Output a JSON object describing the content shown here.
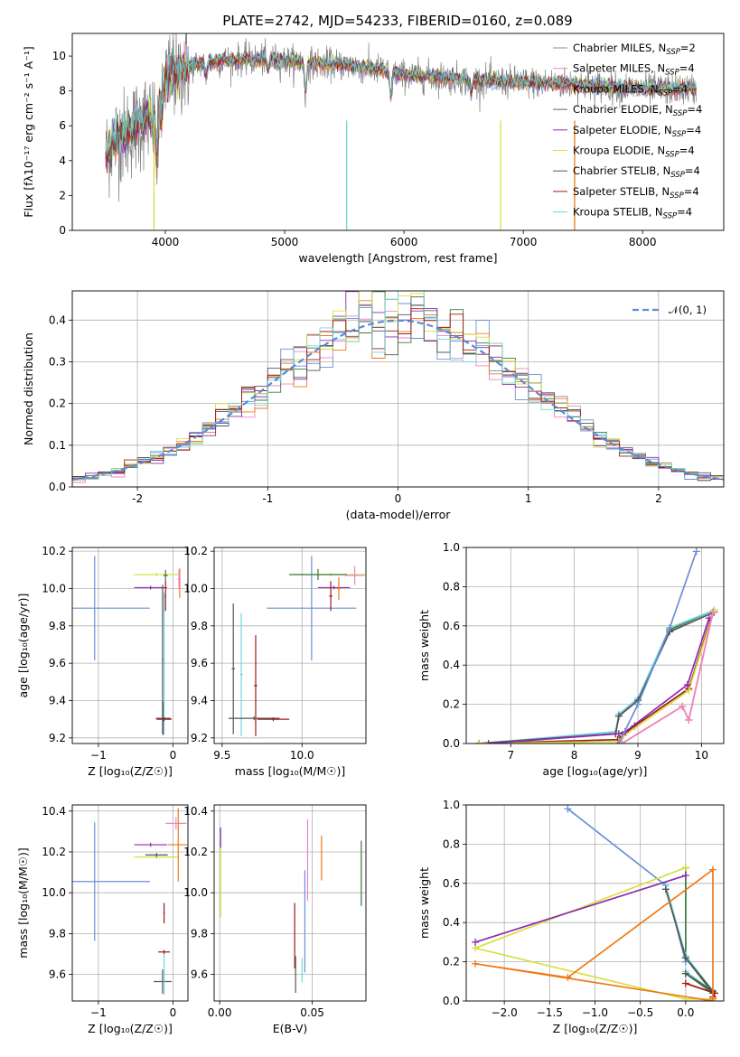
{
  "figure": {
    "title": "PLATE=2742, MJD=54233, FIBERID=0160, z=0.089"
  },
  "colors": {
    "chabrier_miles": "#6a8fd6",
    "salpeter_miles": "#ee82c8",
    "kroupa_miles": "#ee7a1a",
    "chabrier_elodie": "#3a7a3a",
    "salpeter_elodie": "#8a2bb0",
    "kroupa_elodie": "#d6e040",
    "chabrier_stelib": "#555555",
    "salpeter_stelib": "#a01818",
    "kroupa_stelib": "#6fd6dc",
    "spectrum": "#808080",
    "normal": "#5b8ad6",
    "grid": "#b0b0b0"
  },
  "chart_data": [
    {
      "id": "spectrum",
      "type": "line",
      "title": "PLATE=2742, MJD=54233, FIBERID=0160, z=0.089",
      "xlabel": "wavelength [Angstrom, rest frame]",
      "ylabel": "Flux [fλ10⁻¹⁷ erg cm⁻² s⁻¹ A⁻¹]",
      "xlim": [
        3220,
        8680
      ],
      "ylim": [
        0,
        11.3
      ],
      "xticks": [
        4000,
        5000,
        6000,
        7000,
        8000
      ],
      "yticks": [
        0,
        2,
        4,
        6,
        8,
        10
      ],
      "grid": false,
      "legend_position": "right",
      "legend": [
        {
          "label": "Chabrier MILES, N",
          "sub": "SSP",
          "eq": "=2",
          "key": "chabrier_miles"
        },
        {
          "label": "Salpeter MILES, N",
          "sub": "SSP",
          "eq": "=4",
          "key": "salpeter_miles"
        },
        {
          "label": "Kroupa MILES, N",
          "sub": "SSP",
          "eq": "=4",
          "key": "kroupa_miles"
        },
        {
          "label": "Chabrier ELODIE, N",
          "sub": "SSP",
          "eq": "=4",
          "key": "chabrier_elodie"
        },
        {
          "label": "Salpeter ELODIE, N",
          "sub": "SSP",
          "eq": "=4",
          "key": "salpeter_elodie"
        },
        {
          "label": "Kroupa ELODIE, N",
          "sub": "SSP",
          "eq": "=4",
          "key": "kroupa_elodie"
        },
        {
          "label": "Chabrier STELIB, N",
          "sub": "SSP",
          "eq": "=4",
          "key": "chabrier_stelib"
        },
        {
          "label": "Salpeter STELIB, N",
          "sub": "SSP",
          "eq": "=4",
          "key": "salpeter_stelib"
        },
        {
          "label": "Kroupa STELIB, N",
          "sub": "SSP",
          "eq": "=4",
          "key": "kroupa_stelib"
        }
      ],
      "data_range": [
        3500,
        8450
      ],
      "continuum": [
        [
          3500,
          4.3
        ],
        [
          3560,
          5.2
        ],
        [
          3650,
          5.4
        ],
        [
          3760,
          6.0
        ],
        [
          3850,
          6.5
        ],
        [
          3920,
          6.0
        ],
        [
          3950,
          8.4
        ],
        [
          4100,
          9.2
        ],
        [
          4300,
          9.6
        ],
        [
          4600,
          9.8
        ],
        [
          4900,
          9.8
        ],
        [
          5200,
          9.6
        ],
        [
          5500,
          9.5
        ],
        [
          5800,
          9.2
        ],
        [
          6000,
          8.9
        ],
        [
          6300,
          8.8
        ],
        [
          6600,
          8.6
        ],
        [
          7000,
          8.5
        ],
        [
          7400,
          8.4
        ],
        [
          7800,
          8.2
        ],
        [
          8100,
          8.1
        ],
        [
          8450,
          8.1
        ]
      ],
      "dips": [
        [
          3933,
          3.0
        ],
        [
          3968,
          2.4
        ],
        [
          4101,
          0.8
        ],
        [
          4340,
          0.8
        ],
        [
          4861,
          0.6
        ],
        [
          5175,
          1.8
        ],
        [
          5890,
          1.5
        ],
        [
          6563,
          0.8
        ]
      ],
      "sky_lines": [
        {
          "x": 3905,
          "key": "kroupa_elodie"
        },
        {
          "x": 5520,
          "key": "kroupa_stelib"
        },
        {
          "x": 6810,
          "key": "kroupa_elodie"
        },
        {
          "x": 7430,
          "key": "kroupa_miles"
        }
      ]
    },
    {
      "id": "residuals",
      "type": "histogram",
      "xlabel": "(data-model)/error",
      "ylabel": "Normed distribution",
      "xlim": [
        -2.5,
        2.5
      ],
      "ylim": [
        0,
        0.47
      ],
      "xticks": [
        -2,
        -1,
        0,
        1,
        2
      ],
      "yticks": [
        0.0,
        0.1,
        0.2,
        0.3,
        0.4
      ],
      "ytick_labels": [
        "0.0",
        "0.1",
        "0.2",
        "0.3",
        "0.4"
      ],
      "grid": true,
      "legend_position": "top-right",
      "legend": [
        {
          "label": "𝒩(0, 1)",
          "key": "normal"
        }
      ],
      "bin_width": 0.1,
      "n_series": 9
    },
    {
      "id": "age_vs_z",
      "type": "errorbar",
      "xlabel": "Z [log₁₀(Z/Z☉)]",
      "ylabel": "age  [log₁₀(age/yr)]",
      "xlim": [
        -1.35,
        0.2
      ],
      "ylim": [
        9.17,
        10.22
      ],
      "xticks": [
        -1,
        0
      ],
      "xtick_labels": [
        "−1",
        "0"
      ],
      "yticks": [
        9.2,
        9.4,
        9.6,
        9.8,
        10.0,
        10.2
      ],
      "ytick_labels": [
        "9.2",
        "9.4",
        "9.6",
        "9.8",
        "10.0",
        "10.2"
      ],
      "grid": true,
      "points": [
        {
          "key": "chabrier_miles",
          "x": -1.05,
          "xerr": 0.74,
          "y": 9.895,
          "yerr": 0.28
        },
        {
          "key": "kroupa_elodie",
          "x": -0.22,
          "xerr": 0.3,
          "y": 10.075,
          "yerr": 0.01
        },
        {
          "key": "salpeter_elodie",
          "x": -0.3,
          "xerr": 0.22,
          "y": 10.005,
          "yerr": 0.01
        },
        {
          "key": "chabrier_elodie",
          "x": -0.1,
          "xerr": 0.03,
          "y": 10.07,
          "yerr": 0.03
        },
        {
          "key": "kroupa_miles",
          "x": 0.09,
          "xerr": 0.01,
          "y": 10.03,
          "yerr": 0.08
        },
        {
          "key": "salpeter_miles",
          "x": 0.08,
          "xerr": 0.02,
          "y": 10.05,
          "yerr": 0.05
        },
        {
          "key": "salpeter_stelib",
          "x": -0.1,
          "xerr": 0.01,
          "y": 9.96,
          "yerr": 0.08
        },
        {
          "key": "chabrier_stelib",
          "x": -0.13,
          "xerr": 0.1,
          "y": 9.305,
          "yerr": 0.09
        },
        {
          "key": "kroupa_stelib",
          "x": -0.12,
          "xerr": 0.02,
          "y": 9.6,
          "yerr": 0.38
        },
        {
          "key": "salpeter_stelib",
          "x": -0.12,
          "xerr": 0.1,
          "y": 9.3,
          "yerr": 0.01
        },
        {
          "key": "chabrier_stelib",
          "x": -0.14,
          "xerr": 0.01,
          "y": 9.62,
          "yerr": 0.4
        }
      ]
    },
    {
      "id": "age_vs_mass",
      "type": "errorbar",
      "xlabel": "mass [log₁₀(M/M☉)]",
      "ylabel": "",
      "xlim": [
        9.45,
        10.4
      ],
      "ylim": [
        9.17,
        10.22
      ],
      "xticks": [
        9.5,
        10.0
      ],
      "xtick_labels": [
        "9.5",
        "10.0"
      ],
      "yticks": [
        9.2,
        9.4,
        9.6,
        9.8,
        10.0,
        10.2
      ],
      "ytick_labels": [
        "9.2",
        "9.4",
        "9.6",
        "9.8",
        "10.0",
        "10.2"
      ],
      "grid": true,
      "points": [
        {
          "key": "chabrier_miles",
          "x": 10.06,
          "xerr": 0.28,
          "y": 9.895,
          "yerr": 0.28
        },
        {
          "key": "kroupa_elodie",
          "x": 10.18,
          "xerr": 0.22,
          "y": 10.075,
          "yerr": 0.01
        },
        {
          "key": "chabrier_elodie",
          "x": 10.1,
          "xerr": 0.18,
          "y": 10.075,
          "yerr": 0.03
        },
        {
          "key": "salpeter_miles",
          "x": 10.33,
          "xerr": 0.06,
          "y": 10.07,
          "yerr": 0.05
        },
        {
          "key": "salpeter_elodie",
          "x": 10.2,
          "xerr": 0.1,
          "y": 10.005,
          "yerr": 0.01
        },
        {
          "key": "kroupa_miles",
          "x": 10.23,
          "xerr": 0.01,
          "y": 10.0,
          "yerr": 0.06
        },
        {
          "key": "salpeter_stelib",
          "x": 10.18,
          "xerr": 0.01,
          "y": 9.96,
          "yerr": 0.08
        },
        {
          "key": "chabrier_stelib",
          "x": 9.57,
          "xerr": 0.01,
          "y": 9.57,
          "yerr": 0.35
        },
        {
          "key": "kroupa_stelib",
          "x": 9.62,
          "xerr": 0.01,
          "y": 9.54,
          "yerr": 0.33
        },
        {
          "key": "salpeter_stelib",
          "x": 9.71,
          "xerr": 0.01,
          "y": 9.48,
          "yerr": 0.27
        },
        {
          "key": "chabrier_stelib",
          "x": 9.7,
          "xerr": 0.16,
          "y": 9.305,
          "yerr": 0.01
        },
        {
          "key": "salpeter_stelib",
          "x": 9.82,
          "xerr": 0.1,
          "y": 9.3,
          "yerr": 0.01
        }
      ]
    },
    {
      "id": "cumulative_mass_vs_age",
      "type": "line",
      "xlabel": "age  [log₁₀(age/yr)]",
      "ylabel": "mass weight",
      "xlim": [
        6.3,
        10.35
      ],
      "ylim": [
        0,
        1.0
      ],
      "xticks": [
        7,
        8,
        9,
        10
      ],
      "yticks": [
        0.0,
        0.2,
        0.4,
        0.6,
        0.8,
        1.0
      ],
      "ytick_labels": [
        "0.0",
        "0.2",
        "0.4",
        "0.6",
        "0.8",
        "1.0"
      ],
      "grid": true,
      "series": [
        {
          "key": "chabrier_elodie",
          "x": [
            6.5,
            8.65,
            8.7,
            9.0,
            9.5,
            10.2
          ],
          "y": [
            0.0,
            0.05,
            0.14,
            0.22,
            0.58,
            0.68
          ]
        },
        {
          "key": "kroupa_stelib",
          "x": [
            6.5,
            8.65,
            8.7,
            9.0,
            9.5,
            10.2
          ],
          "y": [
            0.0,
            0.06,
            0.15,
            0.23,
            0.59,
            0.68
          ]
        },
        {
          "key": "chabrier_stelib",
          "x": [
            6.5,
            8.65,
            8.7,
            9.0,
            9.5,
            10.2
          ],
          "y": [
            0.0,
            0.05,
            0.14,
            0.22,
            0.57,
            0.67
          ]
        },
        {
          "key": "salpeter_stelib",
          "x": [
            6.5,
            8.68,
            8.75,
            8.95,
            9.8,
            10.18
          ],
          "y": [
            0.0,
            0.02,
            0.04,
            0.09,
            0.28,
            0.67
          ]
        },
        {
          "key": "kroupa_elodie",
          "x": [
            6.5,
            8.7,
            8.78,
            9.8,
            10.2
          ],
          "y": [
            0.0,
            0.01,
            0.04,
            0.27,
            0.68
          ]
        },
        {
          "key": "salpeter_elodie",
          "x": [
            6.65,
            8.7,
            8.8,
            9.78,
            10.12
          ],
          "y": [
            0.0,
            0.05,
            0.06,
            0.3,
            0.64
          ]
        },
        {
          "key": "kroupa_miles",
          "x": [
            8.75,
            9.7,
            9.8,
            10.18
          ],
          "y": [
            0.0,
            0.19,
            0.12,
            0.67
          ]
        },
        {
          "key": "salpeter_miles",
          "x": [
            8.75,
            9.7,
            9.8,
            10.18
          ],
          "y": [
            0.0,
            0.19,
            0.12,
            0.67
          ]
        },
        {
          "key": "chabrier_miles",
          "x": [
            8.7,
            9.0,
            9.5,
            9.92
          ],
          "y": [
            0.0,
            0.2,
            0.59,
            0.98
          ]
        }
      ]
    },
    {
      "id": "mass_vs_z",
      "type": "errorbar",
      "xlabel": "Z [log₁₀(Z/Z☉)]",
      "ylabel": "mass [log₁₀(M/M☉)]",
      "xlim": [
        -1.35,
        0.2
      ],
      "ylim": [
        9.47,
        10.43
      ],
      "xticks": [
        -1,
        0
      ],
      "xtick_labels": [
        "−1",
        "0"
      ],
      "yticks": [
        9.6,
        9.8,
        10.0,
        10.2,
        10.4
      ],
      "ytick_labels": [
        "9.6",
        "9.8",
        "10.0",
        "10.2",
        "10.4"
      ],
      "grid": true,
      "points": [
        {
          "key": "chabrier_miles",
          "x": -1.05,
          "xerr": 0.74,
          "y": 10.055,
          "yerr": 0.29
        },
        {
          "key": "salpeter_elodie",
          "x": -0.3,
          "xerr": 0.22,
          "y": 10.235,
          "yerr": 0.01
        },
        {
          "key": "kroupa_elodie",
          "x": -0.22,
          "xerr": 0.3,
          "y": 10.175,
          "yerr": 0.01
        },
        {
          "key": "chabrier_stelib",
          "x": -0.22,
          "xerr": 0.15,
          "y": 10.185,
          "yerr": 0.01
        },
        {
          "key": "salpeter_miles",
          "x": 0.04,
          "xerr": 0.14,
          "y": 10.34,
          "yerr": 0.03
        },
        {
          "key": "kroupa_miles",
          "x": 0.07,
          "xerr": 0.14,
          "y": 10.235,
          "yerr": 0.18
        },
        {
          "key": "salpeter_stelib",
          "x": -0.12,
          "xerr": 0.08,
          "y": 9.71,
          "yerr": 0.01
        },
        {
          "key": "chabrier_stelib",
          "x": -0.14,
          "xerr": 0.12,
          "y": 9.565,
          "yerr": 0.06
        },
        {
          "key": "kroupa_stelib",
          "x": -0.12,
          "xerr": 0.02,
          "y": 9.6,
          "yerr": 0.1
        },
        {
          "key": "salpeter_stelib",
          "x": -0.12,
          "xerr": 0.01,
          "y": 9.9,
          "yerr": 0.05
        }
      ]
    },
    {
      "id": "mass_vs_ebv",
      "type": "errorbar",
      "xlabel": "E(B-V)",
      "ylabel": "",
      "xlim": [
        -0.003,
        0.079
      ],
      "ylim": [
        9.47,
        10.43
      ],
      "xticks": [
        0.0,
        0.05
      ],
      "xtick_labels": [
        "0.00",
        "0.05"
      ],
      "yticks": [
        9.6,
        9.8,
        10.0,
        10.2,
        10.4
      ],
      "ytick_labels": [
        "9.6",
        "9.8",
        "10.0",
        "10.2",
        "10.4"
      ],
      "grid": true,
      "points": [
        {
          "key": "salpeter_elodie",
          "x": 0.0005,
          "xerr": 0.0,
          "y": 10.27,
          "yerr": 0.05
        },
        {
          "key": "kroupa_elodie",
          "x": 0.0005,
          "xerr": 0.0,
          "y": 10.05,
          "yerr": 0.17
        },
        {
          "key": "chabrier_elodie",
          "x": 0.0765,
          "xerr": 0.0,
          "y": 10.095,
          "yerr": 0.16
        },
        {
          "key": "salpeter_miles",
          "x": 0.0475,
          "xerr": 0.0,
          "y": 10.16,
          "yerr": 0.2
        },
        {
          "key": "chabrier_miles",
          "x": 0.046,
          "xerr": 0.0,
          "y": 9.86,
          "yerr": 0.25
        },
        {
          "key": "kroupa_miles",
          "x": 0.055,
          "xerr": 0.0,
          "y": 10.17,
          "yerr": 0.11
        },
        {
          "key": "salpeter_stelib",
          "x": 0.0405,
          "xerr": 0.0,
          "y": 9.79,
          "yerr": 0.16
        },
        {
          "key": "chabrier_stelib",
          "x": 0.041,
          "xerr": 0.0,
          "y": 9.6,
          "yerr": 0.09
        },
        {
          "key": "kroupa_stelib",
          "x": 0.0445,
          "xerr": 0.0,
          "y": 9.62,
          "yerr": 0.06
        }
      ]
    },
    {
      "id": "cumulative_mass_vs_z",
      "type": "line",
      "xlabel": "Z [log₁₀(Z/Z☉)]",
      "ylabel": "mass weight",
      "xlim": [
        -2.42,
        0.42
      ],
      "ylim": [
        0,
        1.0
      ],
      "xticks": [
        -2.0,
        -1.5,
        -1.0,
        -0.5,
        0.0
      ],
      "xtick_labels": [
        "−2.0",
        "−1.5",
        "−1.0",
        "−0.5",
        "0.0"
      ],
      "yticks": [
        0.0,
        0.2,
        0.4,
        0.6,
        0.8,
        1.0
      ],
      "ytick_labels": [
        "0.0",
        "0.2",
        "0.4",
        "0.6",
        "0.8",
        "1.0"
      ],
      "grid": true,
      "series": [
        {
          "key": "chabrier_miles",
          "x": [
            -1.3,
            -0.22,
            0.0
          ],
          "y": [
            0.98,
            0.59,
            0.2
          ]
        },
        {
          "key": "chabrier_elodie",
          "x": [
            0.0,
            0.3,
            0.0,
            0.0
          ],
          "y": [
            0.14,
            0.04,
            0.22,
            0.68
          ]
        },
        {
          "key": "kroupa_stelib",
          "x": [
            0.0,
            0.3,
            0.0,
            -0.22
          ],
          "y": [
            0.15,
            0.05,
            0.23,
            0.59
          ]
        },
        {
          "key": "chabrier_stelib",
          "x": [
            0.0,
            0.3,
            0.0,
            -0.22
          ],
          "y": [
            0.14,
            0.05,
            0.22,
            0.57
          ]
        },
        {
          "key": "salpeter_stelib",
          "x": [
            0.3,
            0.32,
            0.0
          ],
          "y": [
            0.02,
            0.04,
            0.09
          ]
        },
        {
          "key": "kroupa_elodie",
          "x": [
            0.3,
            0.0,
            -2.32,
            0.0
          ],
          "y": [
            0.01,
            0.01,
            0.27,
            0.68
          ]
        },
        {
          "key": "salpeter_elodie",
          "x": [
            -2.32,
            0.0
          ],
          "y": [
            0.3,
            0.64
          ]
        },
        {
          "key": "kroupa_miles",
          "x": [
            0.3,
            -2.32,
            -1.3,
            0.3,
            0.3
          ],
          "y": [
            0.0,
            0.19,
            0.12,
            0.67,
            0.01
          ]
        }
      ]
    }
  ]
}
